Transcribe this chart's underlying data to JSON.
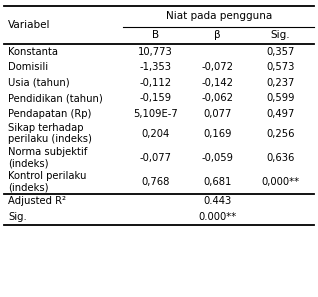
{
  "title_top": "Niat pada pengguna",
  "col_headers": [
    "Variabel",
    "B",
    "β",
    "Sig."
  ],
  "rows": [
    [
      "Konstanta",
      "10,773",
      "",
      "0,357"
    ],
    [
      "Domisili",
      "-1,353",
      "-0,072",
      "0,573"
    ],
    [
      "Usia (tahun)",
      "-0,112",
      "-0,142",
      "0,237"
    ],
    [
      "Pendidikan (tahun)",
      "-0,159",
      "-0,062",
      "0,599"
    ],
    [
      "Pendapatan (Rp)",
      "5,109E-7",
      "0,077",
      "0,497"
    ],
    [
      "Sikap terhadap\nperilaku (indeks)",
      "0,204",
      "0,169",
      "0,256"
    ],
    [
      "Norma subjektif\n(indeks)",
      "-0,077",
      "-0,059",
      "0,636"
    ],
    [
      "Kontrol perilaku\n(indeks)",
      "0,768",
      "0,681",
      "0,000**"
    ]
  ],
  "footer_rows": [
    [
      "Adjusted R²",
      "",
      "0.443",
      ""
    ],
    [
      "Sig.",
      "",
      "0.000**",
      ""
    ]
  ],
  "bg_color": "#ffffff",
  "text_color": "#000000",
  "font_size": 7.2
}
